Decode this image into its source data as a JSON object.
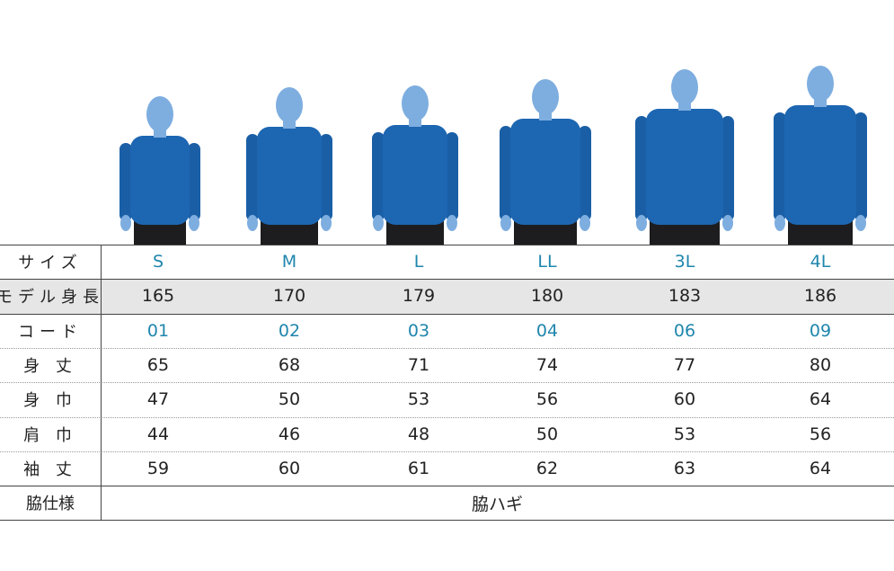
{
  "table": {
    "rows": [
      {
        "label": "サイズ",
        "cells": [
          "S",
          "M",
          "L",
          "LL",
          "3L",
          "4L"
        ]
      },
      {
        "label": "モデル身長",
        "cells": [
          "165",
          "170",
          "179",
          "180",
          "183",
          "186"
        ]
      },
      {
        "label": "コード",
        "cells": [
          "01",
          "02",
          "03",
          "04",
          "06",
          "09"
        ]
      },
      {
        "label": "身 丈",
        "cells": [
          "65",
          "68",
          "71",
          "74",
          "77",
          "80"
        ]
      },
      {
        "label": "身 巾",
        "cells": [
          "47",
          "50",
          "53",
          "56",
          "60",
          "64"
        ]
      },
      {
        "label": "肩 巾",
        "cells": [
          "44",
          "46",
          "48",
          "50",
          "53",
          "56"
        ]
      },
      {
        "label": "袖 丈",
        "cells": [
          "59",
          "60",
          "61",
          "62",
          "63",
          "64"
        ]
      }
    ],
    "footer": {
      "label": "脇仕様",
      "value": "脇ハギ"
    }
  }
}
